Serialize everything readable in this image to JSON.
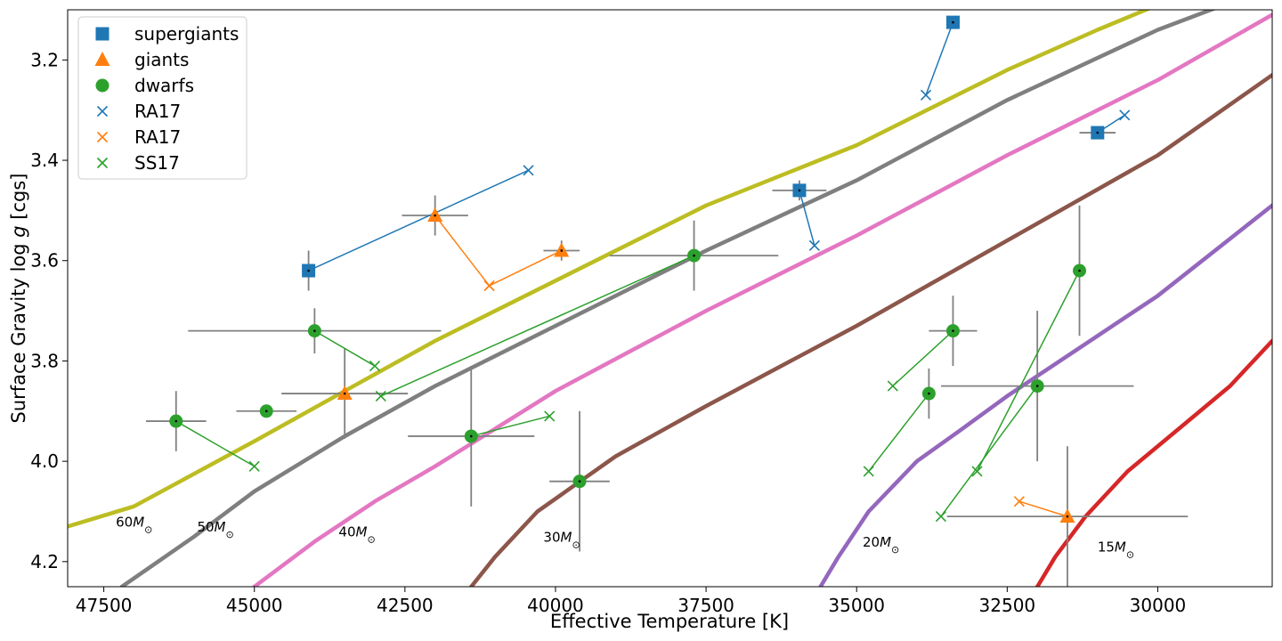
{
  "chart_data": {
    "type": "scatter",
    "xlabel_text": "Effective Temperature [K]",
    "ylabel_text": "Surface Gravity log ",
    "ylabel_italic": "g",
    "ylabel_unit": " [cgs]",
    "xlim": [
      48100,
      28100
    ],
    "ylim": [
      4.25,
      3.1
    ],
    "x_inverted": true,
    "y_inverted": true,
    "xticks": [
      47500,
      45000,
      42500,
      40000,
      37500,
      35000,
      32500,
      30000
    ],
    "xtick_labels": [
      "47500",
      "45000",
      "42500",
      "40000",
      "37500",
      "35000",
      "32500",
      "30000"
    ],
    "yticks": [
      3.2,
      3.4,
      3.6,
      3.8,
      4.0,
      4.2
    ],
    "ytick_labels": [
      "3.2",
      "3.4",
      "3.6",
      "3.8",
      "4.0",
      "4.2"
    ],
    "grid": false,
    "legend_position": "top-left",
    "legend": [
      {
        "label": "supergiants",
        "marker": "square",
        "color": "#1f77b4"
      },
      {
        "label": "giants",
        "marker": "triangle",
        "color": "#ff7f0e"
      },
      {
        "label": "dwarfs",
        "marker": "circle",
        "color": "#2ca02c"
      },
      {
        "label": "RA17",
        "marker": "x",
        "color": "#1f77b4"
      },
      {
        "label": "RA17",
        "marker": "x",
        "color": "#ff7f0e"
      },
      {
        "label": "SS17",
        "marker": "x",
        "color": "#2ca02c"
      }
    ],
    "tracks": [
      {
        "label_main": "60",
        "label_sub": "M",
        "label_sym": "⊙",
        "label_at": [
          47300,
          4.13
        ],
        "color": "#bcbd22",
        "points": [
          [
            48100,
            4.13
          ],
          [
            47000,
            4.09
          ],
          [
            45000,
            3.96
          ],
          [
            43500,
            3.86
          ],
          [
            42000,
            3.76
          ],
          [
            40000,
            3.64
          ],
          [
            37500,
            3.49
          ],
          [
            35000,
            3.37
          ],
          [
            32500,
            3.22
          ],
          [
            31000,
            3.14
          ],
          [
            30000,
            3.09
          ]
        ]
      },
      {
        "label_main": "50",
        "label_sub": "M",
        "label_sym": "⊙",
        "label_at": [
          45950,
          4.14
        ],
        "color": "#7f7f7f",
        "points": [
          [
            47200,
            4.25
          ],
          [
            46000,
            4.15
          ],
          [
            45000,
            4.06
          ],
          [
            43500,
            3.95
          ],
          [
            42000,
            3.85
          ],
          [
            40000,
            3.73
          ],
          [
            37500,
            3.58
          ],
          [
            35000,
            3.44
          ],
          [
            32500,
            3.28
          ],
          [
            30000,
            3.14
          ],
          [
            28900,
            3.09
          ]
        ]
      },
      {
        "label_main": "40",
        "label_sub": "M",
        "label_sym": "⊙",
        "label_at": [
          43600,
          4.15
        ],
        "color": "#e377c2",
        "points": [
          [
            45000,
            4.25
          ],
          [
            44000,
            4.16
          ],
          [
            43000,
            4.08
          ],
          [
            42000,
            4.01
          ],
          [
            40000,
            3.86
          ],
          [
            37500,
            3.7
          ],
          [
            35000,
            3.55
          ],
          [
            32500,
            3.39
          ],
          [
            30000,
            3.24
          ],
          [
            28100,
            3.11
          ]
        ]
      },
      {
        "label_main": "30",
        "label_sub": "M",
        "label_sym": "⊙",
        "label_at": [
          40200,
          4.16
        ],
        "color": "#8c564b",
        "points": [
          [
            41400,
            4.25
          ],
          [
            41000,
            4.19
          ],
          [
            40300,
            4.1
          ],
          [
            39000,
            3.99
          ],
          [
            37500,
            3.89
          ],
          [
            35000,
            3.73
          ],
          [
            32500,
            3.56
          ],
          [
            30000,
            3.39
          ],
          [
            28100,
            3.23
          ]
        ]
      },
      {
        "label_main": "20",
        "label_sub": "M",
        "label_sym": "⊙",
        "label_at": [
          34900,
          4.17
        ],
        "color": "#9467bd",
        "points": [
          [
            35600,
            4.25
          ],
          [
            35300,
            4.19
          ],
          [
            34800,
            4.1
          ],
          [
            34000,
            4.0
          ],
          [
            33300,
            3.94
          ],
          [
            32500,
            3.87
          ],
          [
            30000,
            3.67
          ],
          [
            28100,
            3.49
          ]
        ]
      },
      {
        "label_main": "15",
        "label_sub": "M",
        "label_sym": "⊙",
        "label_at": [
          31000,
          4.18
        ],
        "color": "#d62728",
        "points": [
          [
            32000,
            4.25
          ],
          [
            31700,
            4.19
          ],
          [
            31200,
            4.11
          ],
          [
            30500,
            4.02
          ],
          [
            29500,
            3.92
          ],
          [
            28800,
            3.85
          ],
          [
            28100,
            3.76
          ]
        ]
      }
    ],
    "stars": [
      {
        "class": "supergiants",
        "x": 44100,
        "y": 3.62,
        "xerr": 0,
        "yerr": 0.04,
        "alt_x": 40450,
        "alt_y": 3.42
      },
      {
        "class": "supergiants",
        "x": 33400,
        "y": 3.125,
        "xerr": 0,
        "yerr": 0,
        "alt_x": 33850,
        "alt_y": 3.27
      },
      {
        "class": "supergiants",
        "x": 35950,
        "y": 3.46,
        "xerr": 450,
        "yerr": 0.02,
        "alt_x": 35700,
        "alt_y": 3.57
      },
      {
        "class": "supergiants",
        "x": 31000,
        "y": 3.345,
        "xerr": 300,
        "yerr": 0,
        "alt_x": 30550,
        "alt_y": 3.31
      },
      {
        "class": "giants",
        "x": 42000,
        "y": 3.51,
        "xerr": 550,
        "yerr": 0.04,
        "alt_x": 41100,
        "alt_y": 3.65
      },
      {
        "class": "giants",
        "x": 39900,
        "y": 3.58,
        "xerr": 300,
        "yerr": 0.02,
        "alt_x": 41100,
        "alt_y": 3.65
      },
      {
        "class": "giants",
        "x": 43500,
        "y": 3.865,
        "xerr": 1050,
        "yerr": 0.09,
        "alt_x": 0,
        "alt_y": 0
      },
      {
        "class": "giants",
        "x": 31500,
        "y": 4.11,
        "xerr": 2000,
        "yerr": 0.14,
        "alt_x": 32300,
        "alt_y": 4.08
      },
      {
        "class": "dwarfs",
        "x": 46300,
        "y": 3.92,
        "xerr": 500,
        "yerr": 0.06,
        "alt_x": 45000,
        "alt_y": 4.01
      },
      {
        "class": "dwarfs",
        "x": 44800,
        "y": 3.9,
        "xerr": 500,
        "yerr": 0,
        "alt_x": 0,
        "alt_y": 0
      },
      {
        "class": "dwarfs",
        "x": 44000,
        "y": 3.74,
        "xerr": 2100,
        "yerr": 0.045,
        "alt_x": 43000,
        "alt_y": 3.81
      },
      {
        "class": "dwarfs",
        "x": 41400,
        "y": 3.95,
        "xerr": 1050,
        "yerr": 0.14,
        "alt_x": 40100,
        "alt_y": 3.91
      },
      {
        "class": "dwarfs",
        "x": 39600,
        "y": 4.04,
        "xerr": 500,
        "yerr": 0.14,
        "alt_x": 0,
        "alt_y": 0
      },
      {
        "class": "dwarfs",
        "x": 37700,
        "y": 3.59,
        "xerr": 1400,
        "yerr": 0.07,
        "alt_x": 42900,
        "alt_y": 3.87
      },
      {
        "class": "dwarfs",
        "x": 33400,
        "y": 3.74,
        "xerr": 400,
        "yerr": 0.07,
        "alt_x": 34400,
        "alt_y": 3.85
      },
      {
        "class": "dwarfs",
        "x": 33800,
        "y": 3.865,
        "xerr": 0,
        "yerr": 0.05,
        "alt_x": 34800,
        "alt_y": 4.02
      },
      {
        "class": "dwarfs",
        "x": 31300,
        "y": 3.62,
        "xerr": 0,
        "yerr": 0.13,
        "alt_x": 33000,
        "alt_y": 4.02
      },
      {
        "class": "dwarfs",
        "x": 32000,
        "y": 3.85,
        "xerr": 1600,
        "yerr": 0.15,
        "alt_x": 33600,
        "alt_y": 4.11
      }
    ]
  }
}
